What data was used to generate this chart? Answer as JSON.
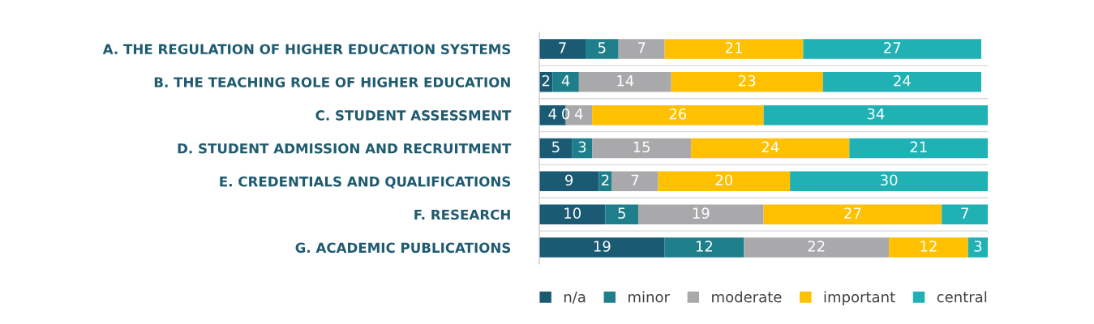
{
  "chart_data": {
    "type": "bar",
    "orientation": "horizontal",
    "stacked": true,
    "annotations": [
      {
        "text": "0",
        "x": 4,
        "y": "C. STUDENT ASSESSMENT"
      }
    ],
    "legend": "bottom",
    "grid": false,
    "tick_labels": "y",
    "xlim": [
      0,
      68
    ],
    "categories": [
      "A. THE REGULATION OF HIGHER EDUCATION SYSTEMS",
      "B. THE TEACHING ROLE OF HIGHER EDUCATION",
      "C. STUDENT ASSESSMENT",
      "D. STUDENT ADMISSION AND RECRUITMENT",
      "E. CREDENTIALS AND QUALIFICATIONS",
      "F. RESEARCH",
      "G. ACADEMIC PUBLICATIONS"
    ],
    "series": [
      {
        "name": "n/a",
        "color": "#1a5a72",
        "values": [
          7,
          2,
          4,
          5,
          9,
          10,
          19
        ],
        "value_labels": [
          "7",
          "2",
          "4",
          "5",
          "9",
          "10",
          "19"
        ]
      },
      {
        "name": "minor",
        "color": "#1e7f8b",
        "values": [
          5,
          4,
          0,
          3,
          2,
          5,
          12
        ],
        "value_labels": [
          "5",
          "4",
          null,
          "3",
          "2",
          "5",
          "12"
        ]
      },
      {
        "name": "moderate",
        "color": "#a9a9ab",
        "values": [
          7,
          14,
          4,
          15,
          7,
          19,
          22
        ],
        "value_labels": [
          "7",
          "14",
          "4",
          "15",
          "7",
          "19",
          "22"
        ]
      },
      {
        "name": "important",
        "color": "#ffc000",
        "values": [
          21,
          23,
          26,
          24,
          20,
          27,
          12
        ],
        "value_labels": [
          "21",
          "23",
          "26",
          "24",
          "20",
          "27",
          "12"
        ]
      },
      {
        "name": "central",
        "color": "#20b1b5",
        "values": [
          27,
          24,
          34,
          21,
          30,
          7,
          3
        ],
        "value_labels": [
          "27",
          "24",
          "34",
          "21",
          "30",
          "7",
          "3"
        ]
      }
    ]
  }
}
